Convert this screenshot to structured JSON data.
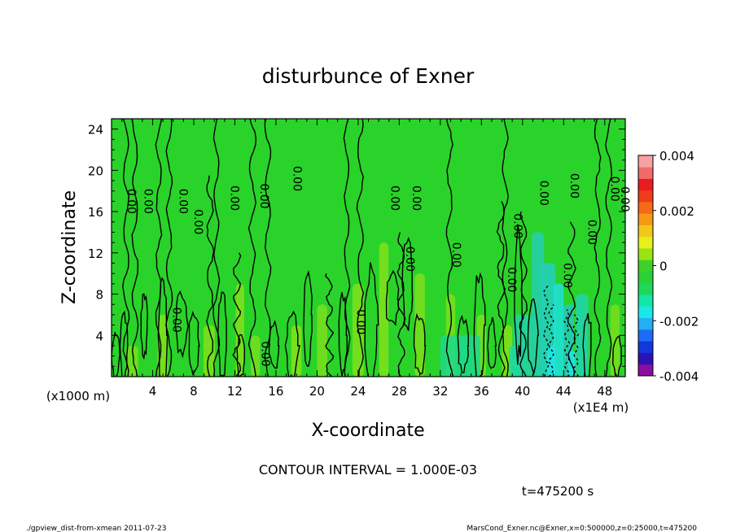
{
  "chart_data": {
    "type": "heatmap",
    "title": "disturbunce of Exner",
    "xlabel": "X-coordinate",
    "ylabel": "Z-coordinate",
    "x_unit_label": "(x1E4 m)",
    "y_unit_label": "(x1000 m)",
    "xlim": [
      0,
      50
    ],
    "ylim": [
      0,
      25
    ],
    "x_ticks": [
      "4",
      "8",
      "12",
      "16",
      "20",
      "24",
      "28",
      "32",
      "36",
      "40",
      "44",
      "48"
    ],
    "y_ticks": [
      "4",
      "8",
      "12",
      "16",
      "20",
      "24"
    ],
    "colorbar": {
      "range": [
        -0.004,
        0.004
      ],
      "ticks": [
        "0.004",
        "0.002",
        "0",
        "-0.002",
        "-0.004"
      ],
      "colors": [
        "#8a0fa0",
        "#2a12b4",
        "#1238dc",
        "#1e6cf5",
        "#22b0f0",
        "#19e8e6",
        "#14e6a8",
        "#1ed85c",
        "#2ccf38",
        "#3cd22a",
        "#9ae414",
        "#e6f01a",
        "#f2c81a",
        "#f59a14",
        "#f46a16",
        "#f03c1a",
        "#e81c22",
        "#f06a6a",
        "#f7a2a2"
      ]
    },
    "contour_labels": [
      "0.00",
      "0.00",
      "0.00",
      "0.00",
      "0.00",
      "0.00",
      "0.00",
      "0.00",
      "0.00",
      "0.00",
      "0.00",
      "0.00",
      "0.00",
      "0.00",
      "0.00",
      "0.00",
      "0.00",
      "0.00",
      "0.00",
      "0.00",
      "0.00",
      "0.00"
    ],
    "contour_interval": "CONTOUR INTERVAL = 1.000E-03",
    "time_label": "t=475200 s"
  },
  "footer": {
    "left": "./gpview_dist-from-xmean  2011-07-23",
    "right": "MarsCond_Exner.nc@Exner,x=0:500000,z=0:25000,t=475200"
  }
}
